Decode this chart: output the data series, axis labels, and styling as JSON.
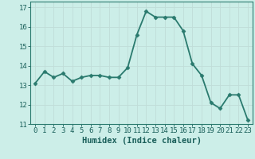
{
  "x": [
    0,
    1,
    2,
    3,
    4,
    5,
    6,
    7,
    8,
    9,
    10,
    11,
    12,
    13,
    14,
    15,
    16,
    17,
    18,
    19,
    20,
    21,
    22,
    23
  ],
  "y": [
    13.1,
    13.7,
    13.4,
    13.6,
    13.2,
    13.4,
    13.5,
    13.5,
    13.4,
    13.4,
    13.9,
    15.6,
    16.8,
    16.5,
    16.5,
    16.5,
    15.8,
    14.1,
    13.5,
    12.1,
    11.8,
    12.5,
    12.5,
    11.2
  ],
  "line_color": "#2a7a6e",
  "marker": "D",
  "marker_size": 2.5,
  "bg_color": "#cceee8",
  "grid_major_color": "#c0ddd8",
  "grid_minor_color": "#d8eeea",
  "xlabel": "Humidex (Indice chaleur)",
  "xlim": [
    -0.5,
    23.5
  ],
  "ylim": [
    11.0,
    17.3
  ],
  "yticks": [
    11,
    12,
    13,
    14,
    15,
    16,
    17
  ],
  "xticks": [
    0,
    1,
    2,
    3,
    4,
    5,
    6,
    7,
    8,
    9,
    10,
    11,
    12,
    13,
    14,
    15,
    16,
    17,
    18,
    19,
    20,
    21,
    22,
    23
  ],
  "tick_fontsize": 6.5,
  "label_fontsize": 7.5,
  "linewidth": 1.3
}
